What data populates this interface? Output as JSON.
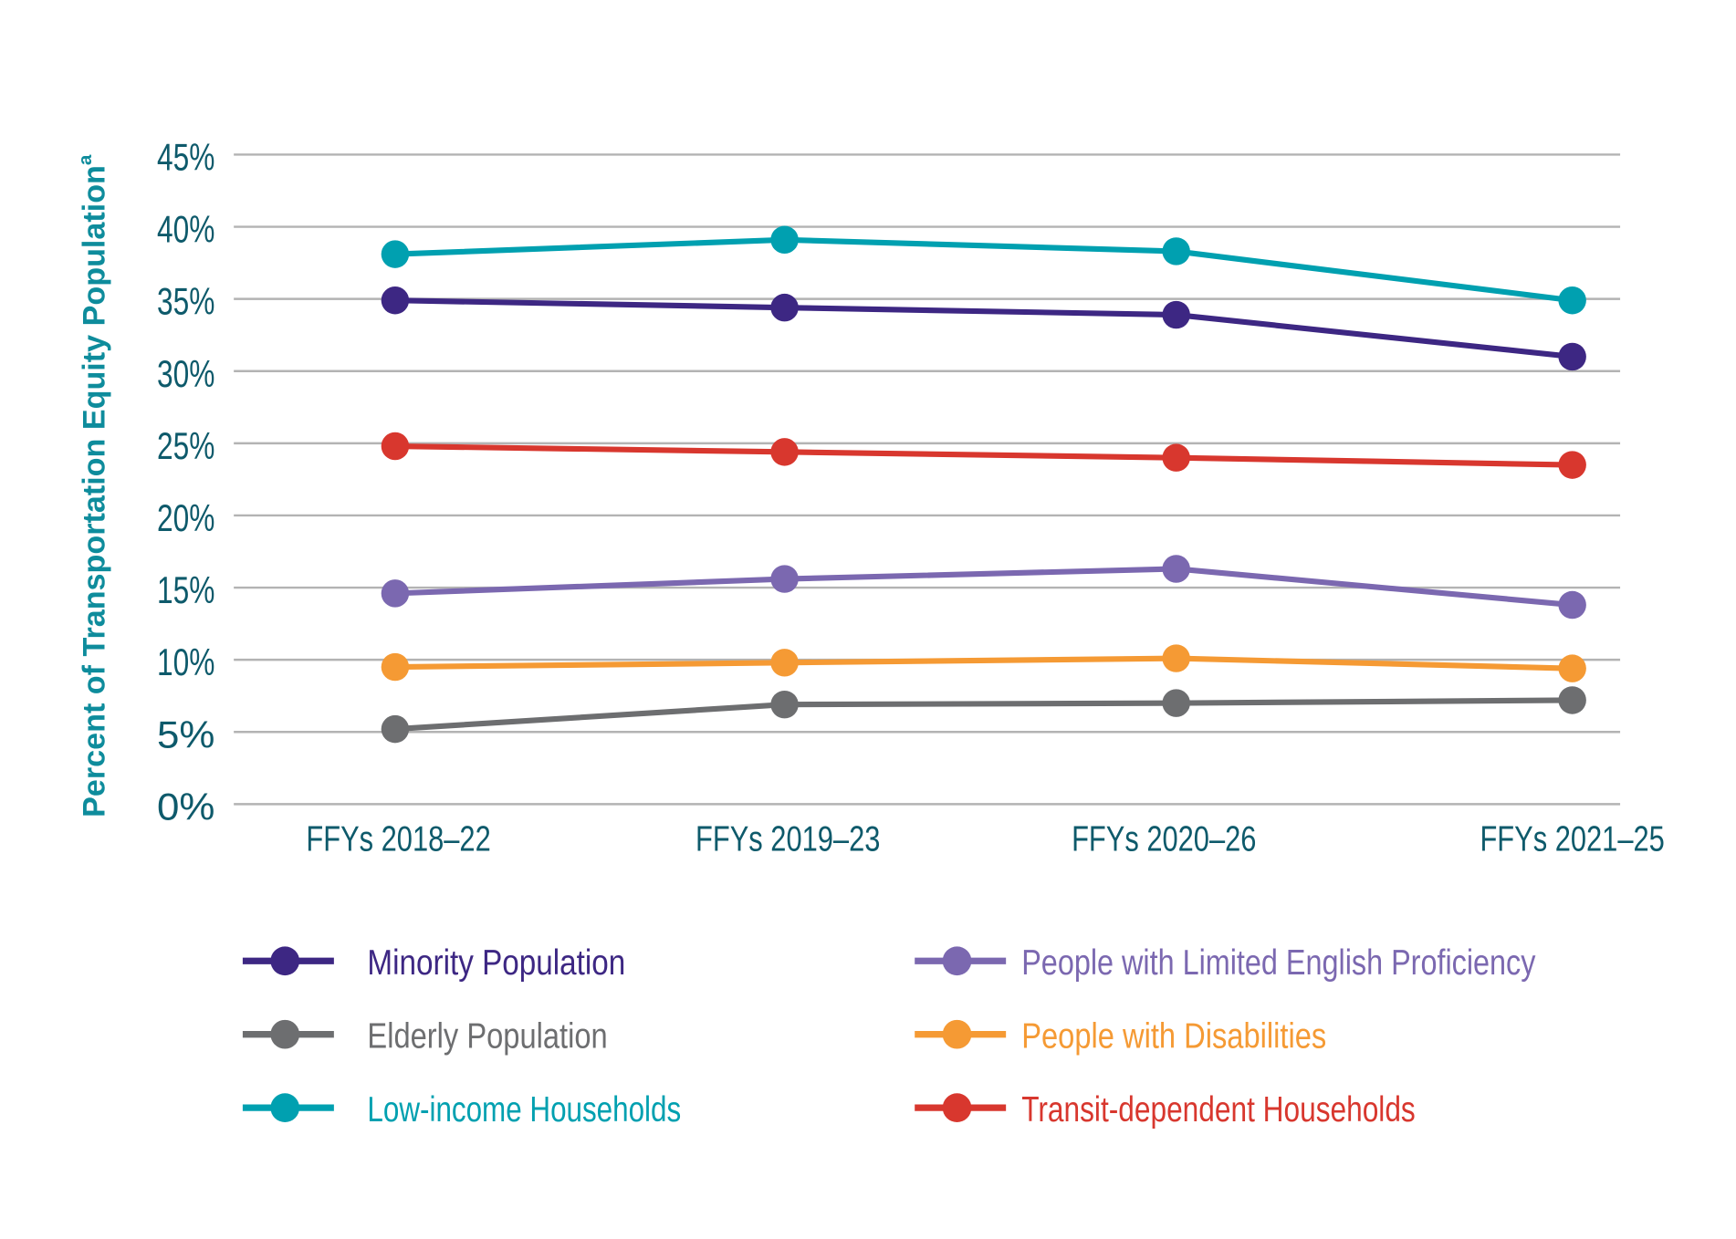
{
  "chart_data": {
    "type": "line",
    "title": "",
    "xlabel": "",
    "ylabel": "Percent of Transportation Equity Population",
    "ylabel_superscript": "a",
    "ylim": [
      0,
      45
    ],
    "yticks": [
      "0%",
      "5%",
      "10%",
      "15%",
      "20%",
      "25%",
      "30%",
      "35%",
      "40%",
      "45%"
    ],
    "ytick_values": [
      0,
      5,
      10,
      15,
      20,
      25,
      30,
      35,
      40,
      45
    ],
    "grid": true,
    "legend_position": "bottom",
    "categories": [
      "FFYs 2018–22",
      "FFYs 2019–23",
      "FFYs 2020–26",
      "FFYs 2021–25"
    ],
    "series": [
      {
        "name": "Minority Population",
        "color": "#3d2783",
        "values": [
          34.9,
          34.4,
          33.9,
          31.0
        ]
      },
      {
        "name": "Elderly Population",
        "color": "#6d6e70",
        "values": [
          5.2,
          6.9,
          7.0,
          7.2
        ]
      },
      {
        "name": "Low-income Households",
        "color": "#00a0b0",
        "values": [
          38.1,
          39.1,
          38.3,
          34.9
        ]
      },
      {
        "name": "People with Limited English Proficiency",
        "color": "#7b68b0",
        "values": [
          14.6,
          15.6,
          16.3,
          13.8
        ]
      },
      {
        "name": "People with Disabilities",
        "color": "#f59a34",
        "values": [
          9.5,
          9.8,
          10.1,
          9.4
        ]
      },
      {
        "name": "Transit-dependent Households",
        "color": "#d8372e",
        "values": [
          24.8,
          24.4,
          24.0,
          23.5
        ]
      }
    ]
  }
}
